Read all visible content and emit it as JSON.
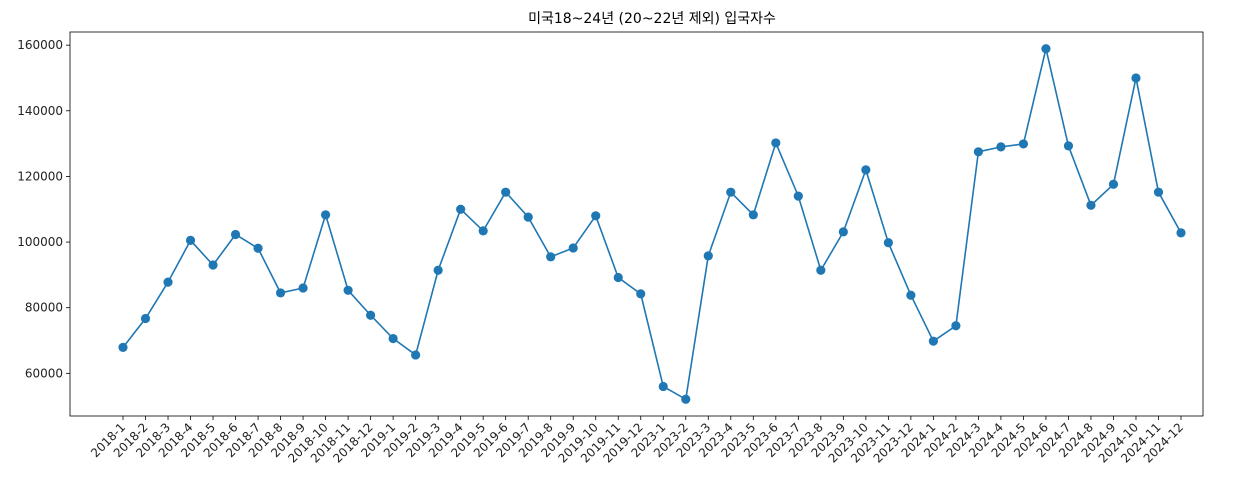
{
  "chart_data": {
    "type": "line",
    "title": "미국18~24년 (20~22년 제외) 입국자수",
    "xlabel": "",
    "ylabel": "",
    "ylim": [
      47000,
      164000
    ],
    "yticks": [
      60000,
      80000,
      100000,
      120000,
      140000,
      160000
    ],
    "grid": false,
    "color": "#1f77b4",
    "marker": "circle",
    "categories": [
      "2018-1",
      "2018-2",
      "2018-3",
      "2018-4",
      "2018-5",
      "2018-6",
      "2018-7",
      "2018-8",
      "2018-9",
      "2018-10",
      "2018-11",
      "2018-12",
      "2019-1",
      "2019-2",
      "2019-3",
      "2019-4",
      "2019-5",
      "2019-6",
      "2019-7",
      "2019-8",
      "2019-9",
      "2019-10",
      "2019-11",
      "2019-12",
      "2023-1",
      "2023-2",
      "2023-3",
      "2023-4",
      "2023-5",
      "2023-6",
      "2023-7",
      "2023-8",
      "2023-9",
      "2023-10",
      "2023-11",
      "2023-12",
      "2024-1",
      "2024-2",
      "2024-3",
      "2024-4",
      "2024-5",
      "2024-6",
      "2024-7",
      "2024-8",
      "2024-9",
      "2024-10",
      "2024-11",
      "2024-12"
    ],
    "values": [
      67900,
      76700,
      87800,
      100500,
      93000,
      102300,
      98100,
      84500,
      86000,
      108300,
      85300,
      77700,
      70600,
      65600,
      91400,
      110000,
      103400,
      115200,
      107600,
      95500,
      98200,
      108000,
      89200,
      84200,
      56000,
      52100,
      95800,
      115200,
      108300,
      130200,
      114000,
      91400,
      103100,
      122000,
      99800,
      83800,
      69800,
      74500,
      127500,
      129000,
      129900,
      158900,
      129300,
      111200,
      117600,
      150000,
      115200,
      102800
    ]
  }
}
